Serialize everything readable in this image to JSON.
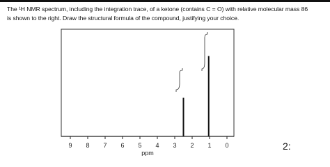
{
  "question": {
    "lines": [
      "The ¹H NMR spectrum, including the integration trace, of a ketone (contains C = O) with relative molecular mass 86",
      "is shown to the right. Draw the structural formula of the compound, justifying your choice."
    ]
  },
  "spectrum": {
    "x_label": "ppm",
    "xlim": [
      9.52,
      -0.4
    ],
    "xticks": [
      9,
      8,
      7,
      6,
      5,
      4,
      3,
      2,
      1,
      0
    ],
    "ylim": [
      0,
      1
    ],
    "peaks": {
      "x": [
        2.5,
        1.05
      ],
      "values": [
        0.36,
        0.75
      ]
    }
  },
  "handwriting": "2:"
}
